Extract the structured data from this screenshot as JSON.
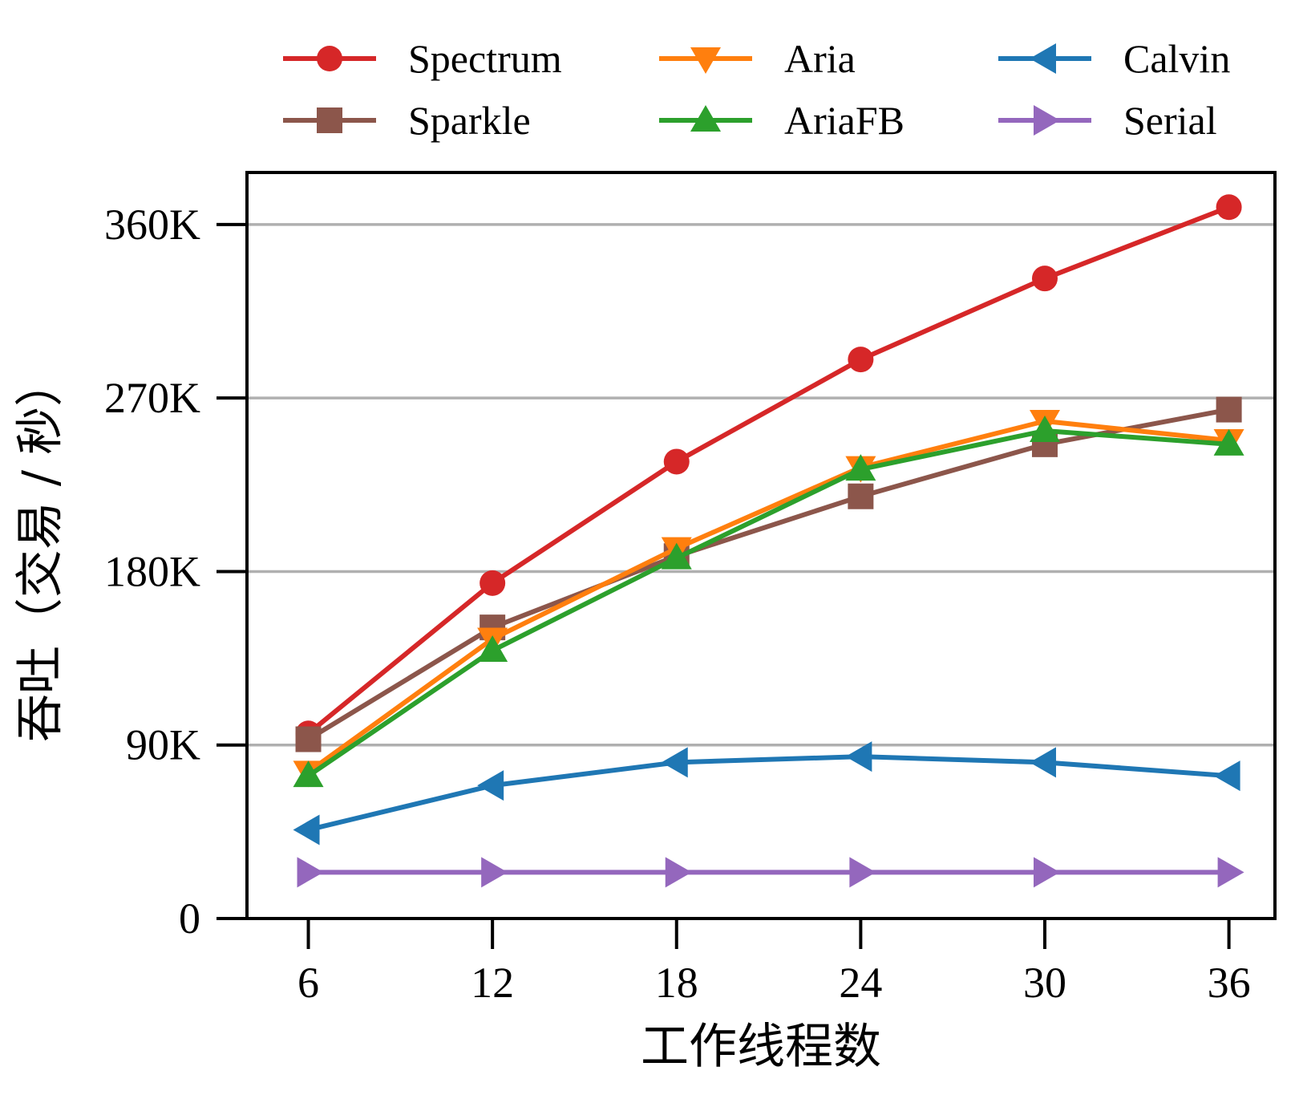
{
  "chart_data": {
    "type": "line",
    "xlabel": "工作线程数",
    "ylabel": "吞吐（交易 / 秒）",
    "x": [
      6,
      12,
      18,
      24,
      30,
      36
    ],
    "x_tick_labels": [
      "6",
      "12",
      "18",
      "24",
      "30",
      "36"
    ],
    "xlim": [
      4,
      37.5
    ],
    "ylim": [
      0,
      387000
    ],
    "y_ticks": [
      0,
      90000,
      180000,
      270000,
      360000
    ],
    "y_tick_labels": [
      "0",
      "90K",
      "180K",
      "270K",
      "360K"
    ],
    "grid": "horizontal",
    "legend_position": "top",
    "series": [
      {
        "name": "Spectrum",
        "color": "#d62728",
        "marker": "circle",
        "values": [
          96000,
          174000,
          237000,
          290000,
          332000,
          369000
        ]
      },
      {
        "name": "Sparkle",
        "color": "#8c564b",
        "marker": "square",
        "values": [
          93000,
          151000,
          188000,
          219000,
          246000,
          264000
        ]
      },
      {
        "name": "Aria",
        "color": "#ff7f0e",
        "marker": "triangle-down",
        "values": [
          76000,
          145000,
          192000,
          234000,
          258000,
          248000
        ]
      },
      {
        "name": "AriaFB",
        "color": "#2ca02c",
        "marker": "triangle-up",
        "values": [
          74000,
          139000,
          187000,
          233000,
          253000,
          246000
        ]
      },
      {
        "name": "Calvin",
        "color": "#1f77b4",
        "marker": "triangle-left",
        "values": [
          46000,
          69000,
          81000,
          84000,
          81000,
          74000
        ]
      },
      {
        "name": "Serial",
        "color": "#9467bd",
        "marker": "triangle-right",
        "values": [
          24000,
          24000,
          24000,
          24000,
          24000,
          24000
        ]
      }
    ]
  }
}
